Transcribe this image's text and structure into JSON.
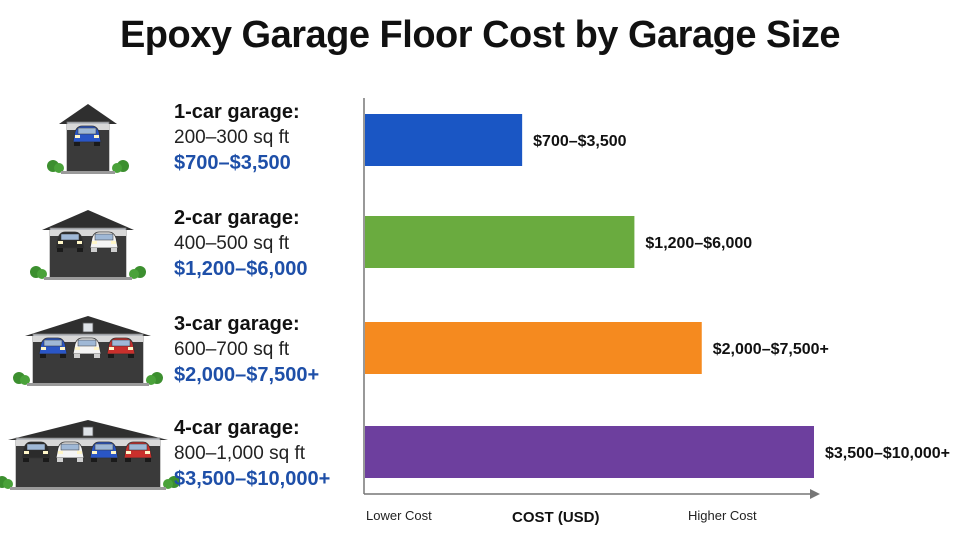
{
  "title": "Epoxy Garage Floor Cost by Garage Size",
  "garages": [
    {
      "name": "1-car garage:",
      "area": "200–300 sq ft",
      "cost": "$700–$3,500",
      "cars": [
        "#2a56c6"
      ]
    },
    {
      "name": "2-car garage:",
      "area": "400–500 sq ft",
      "cost": "$1,200–$6,000",
      "cars": [
        "#2b2b2b",
        "#f4f4f4"
      ]
    },
    {
      "name": "3-car garage:",
      "area": "600–700 sq ft",
      "cost": "$2,000–$7,500+",
      "cars": [
        "#2a56c6",
        "#f4f4f4",
        "#c9302c"
      ]
    },
    {
      "name": "4-car garage:",
      "area": "800–1,000 sq ft",
      "cost": "$3,500–$10,000+",
      "cars": [
        "#2b2b2b",
        "#f4f4f4",
        "#2a56c6",
        "#c9302c"
      ]
    }
  ],
  "chart_data": {
    "type": "bar",
    "orientation": "horizontal",
    "categories": [
      "1-car garage",
      "2-car garage",
      "3-car garage",
      "4-car garage"
    ],
    "values": [
      3500,
      6000,
      7500,
      10000
    ],
    "data_labels": [
      "$700–$3,500",
      "$1,200–$6,000",
      "$2,000–$7,500+",
      "$3,500–$10,000+"
    ],
    "colors": [
      "#1a56c4",
      "#6aab3f",
      "#f58a1f",
      "#6d3f9e"
    ],
    "xlabel": "COST (USD)",
    "x_min_label": "Lower Cost",
    "x_max_label": "Higher Cost",
    "xlim": [
      0,
      10000
    ],
    "grid": false
  }
}
